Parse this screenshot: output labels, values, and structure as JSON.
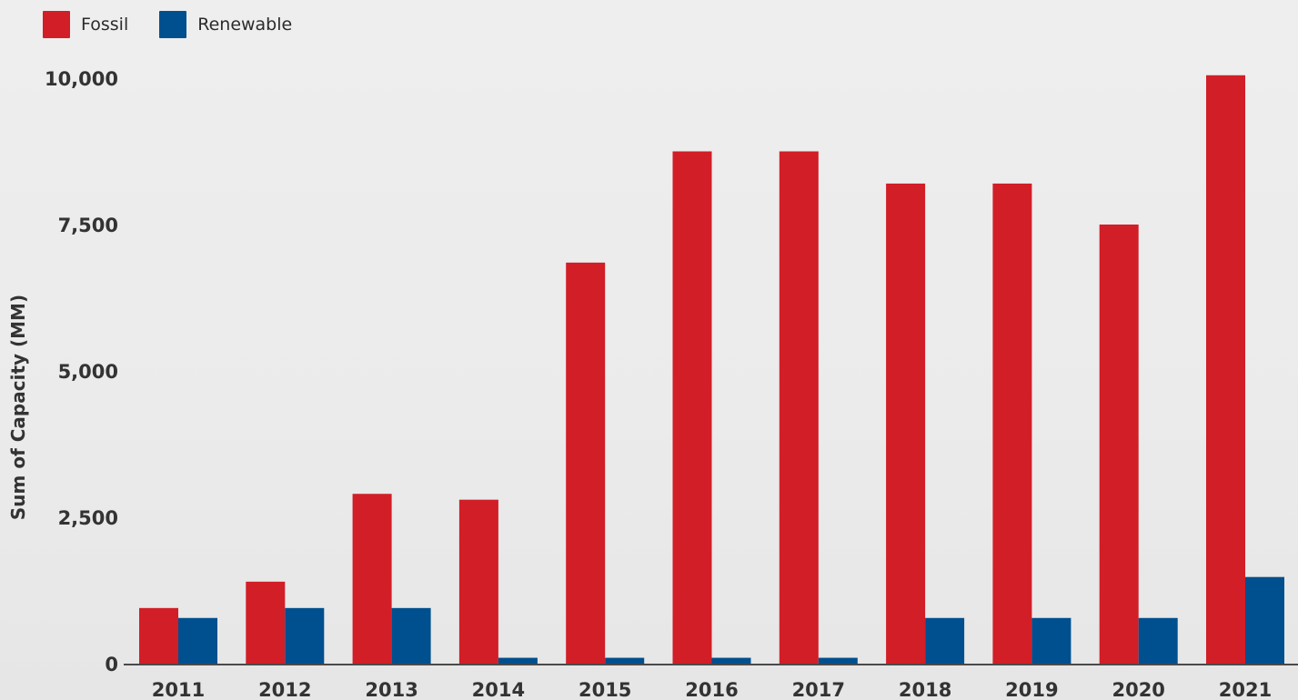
{
  "chart_data": {
    "type": "bar",
    "ylabel": "Sum of Capacity (MM)",
    "xlabel": "",
    "ylim": [
      0,
      10000
    ],
    "yticks": [
      {
        "value": 0,
        "label": "0"
      },
      {
        "value": 2500,
        "label": "2,500"
      },
      {
        "value": 5000,
        "label": "5,000"
      },
      {
        "value": 7500,
        "label": "7,500"
      },
      {
        "value": 10000,
        "label": "10,000"
      }
    ],
    "grid": false,
    "legend_position": "top-left",
    "categories": [
      "2011",
      "2012",
      "2013",
      "2014",
      "2015",
      "2016",
      "2017",
      "2018",
      "2019",
      "2020",
      "2021"
    ],
    "series": [
      {
        "name": "Fossil",
        "color": "#d21e27",
        "values": [
          950,
          1400,
          2900,
          2800,
          6850,
          8750,
          8750,
          8200,
          8200,
          7500,
          10050
        ]
      },
      {
        "name": "Renewable",
        "color": "#004f8e",
        "values": [
          780,
          950,
          950,
          100,
          100,
          100,
          100,
          780,
          780,
          780,
          1480
        ]
      }
    ]
  }
}
